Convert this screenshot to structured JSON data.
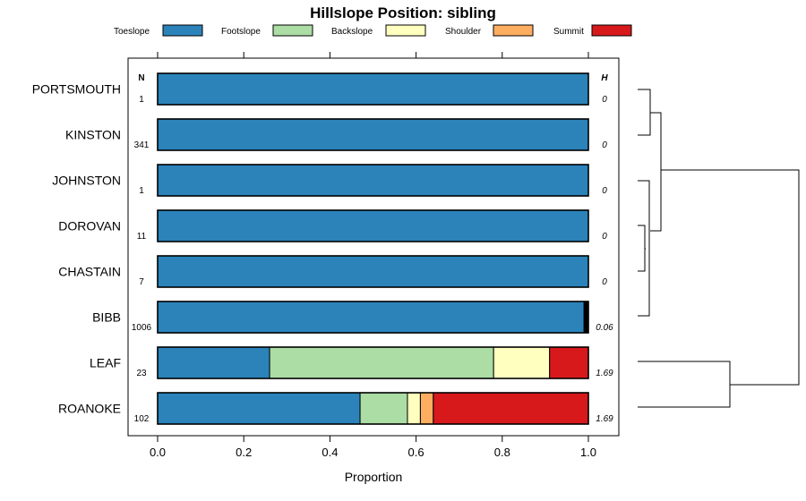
{
  "chart_data": {
    "type": "bar",
    "stacked": true,
    "orientation": "horizontal",
    "title": "Hillslope Position: sibling",
    "xlabel": "Proportion",
    "xlim": [
      0,
      1
    ],
    "x_ticks": [
      "0.0",
      "0.2",
      "0.4",
      "0.6",
      "0.8",
      "1.0"
    ],
    "legend_position": "top",
    "n_header": "N",
    "h_header": "H",
    "legend": [
      {
        "name": "Toeslope",
        "color": "#2b83ba"
      },
      {
        "name": "Footslope",
        "color": "#abdda4"
      },
      {
        "name": "Backslope",
        "color": "#ffffbf"
      },
      {
        "name": "Shoulder",
        "color": "#fdae61"
      },
      {
        "name": "Summit",
        "color": "#d7191c"
      }
    ],
    "rows": [
      {
        "label": "PORTSMOUTH",
        "n": "1",
        "h": "0",
        "values": [
          1.0,
          0,
          0,
          0,
          0
        ]
      },
      {
        "label": "KINSTON",
        "n": "341",
        "h": "0",
        "values": [
          1.0,
          0,
          0,
          0,
          0
        ]
      },
      {
        "label": "JOHNSTON",
        "n": "1",
        "h": "0",
        "values": [
          1.0,
          0,
          0,
          0,
          0
        ]
      },
      {
        "label": "DOROVAN",
        "n": "11",
        "h": "0",
        "values": [
          1.0,
          0,
          0,
          0,
          0
        ]
      },
      {
        "label": "CHASTAIN",
        "n": "7",
        "h": "0",
        "values": [
          1.0,
          0,
          0,
          0,
          0
        ]
      },
      {
        "label": "BIBB",
        "n": "1006",
        "h": "0.06",
        "values": [
          0.99,
          0,
          0,
          0,
          0.01
        ],
        "last_segment_color": "#000000"
      },
      {
        "label": "LEAF",
        "n": "23",
        "h": "1.69",
        "values": [
          0.26,
          0.52,
          0.13,
          0,
          0.09
        ]
      },
      {
        "label": "ROANOKE",
        "n": "102",
        "h": "1.69",
        "values": [
          0.47,
          0.11,
          0.03,
          0.03,
          0.36
        ]
      }
    ]
  }
}
